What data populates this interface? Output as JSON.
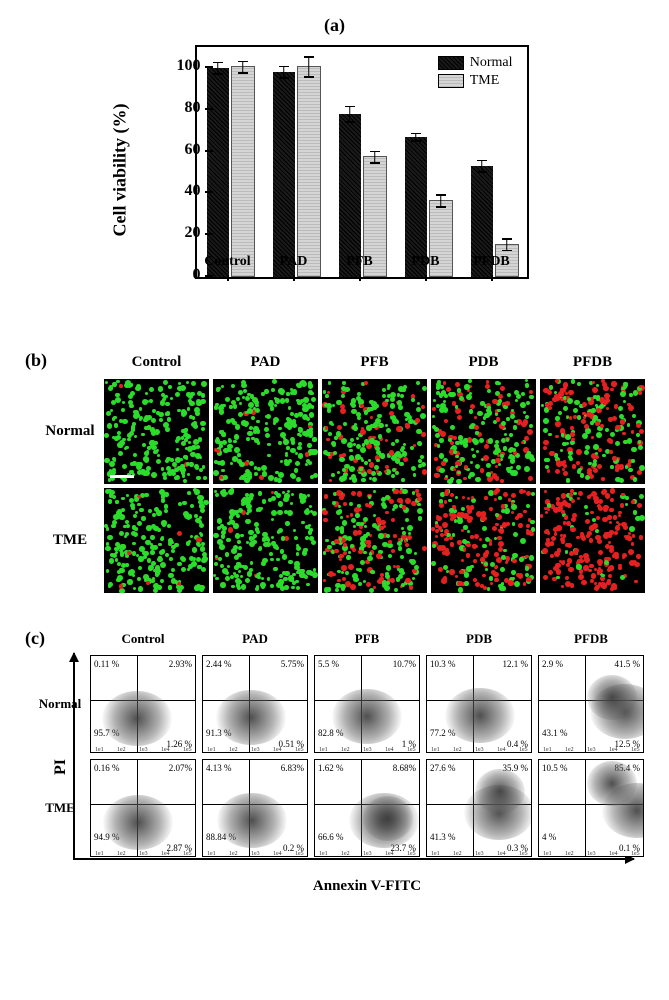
{
  "panel_a": {
    "label": "(a)",
    "type": "bar",
    "ylabel": "Cell viability (%)",
    "ylim": [
      0,
      110
    ],
    "yticks": [
      0,
      20,
      40,
      60,
      80,
      100
    ],
    "categories": [
      "Control",
      "PAD",
      "PFB",
      "PDB",
      "PFDB"
    ],
    "series": [
      {
        "name": "Normal",
        "color": "#1a1a1a",
        "values": [
          100,
          98,
          78,
          67,
          53
        ],
        "errors": [
          3,
          3,
          4,
          2,
          3
        ]
      },
      {
        "name": "TME",
        "color": "#c8c8c8",
        "values": [
          100,
          100,
          57,
          36,
          15
        ],
        "errors": [
          3,
          5,
          3,
          3,
          3
        ]
      }
    ],
    "legend_labels": [
      "Normal",
      "TME"
    ]
  },
  "panel_b": {
    "label": "(b)",
    "columns": [
      "Control",
      "PAD",
      "PFB",
      "PDB",
      "PFDB"
    ],
    "rows": [
      "Normal",
      "TME"
    ],
    "green": "#2bdc2b",
    "red": "#e62020",
    "bg": "#000000",
    "red_fraction": {
      "Normal": {
        "Control": 0.02,
        "PAD": 0.03,
        "PFB": 0.2,
        "PDB": 0.36,
        "PFDB": 0.52
      },
      "TME": {
        "Control": 0.02,
        "PAD": 0.04,
        "PFB": 0.45,
        "PDB": 0.65,
        "PFDB": 0.88
      }
    }
  },
  "panel_c": {
    "label": "(c)",
    "columns": [
      "Control",
      "PAD",
      "PFB",
      "PDB",
      "PFDB"
    ],
    "rows": [
      "Normal",
      "TME"
    ],
    "y_axis": "PI",
    "x_axis": "Annexin V-FITC",
    "quadrants": {
      "Normal": {
        "Control": {
          "q1": "0.11 %",
          "q2": "2.93%",
          "q3": "95.7 %",
          "q4": "1.26 %"
        },
        "PAD": {
          "q1": "2.44 %",
          "q2": "5.75%",
          "q3": "91.3 %",
          "q4": "0.51 %"
        },
        "PFB": {
          "q1": "5.5 %",
          "q2": "10.7%",
          "q3": "82.8 %",
          "q4": "1 %"
        },
        "PDB": {
          "q1": "10.3 %",
          "q2": "12.1 %",
          "q3": "77.2 %",
          "q4": "0.4 %"
        },
        "PFDB": {
          "q1": "2.9 %",
          "q2": "41.5 %",
          "q3": "43.1 %",
          "q4": "12.5 %"
        }
      },
      "TME": {
        "Control": {
          "q1": "0.16 %",
          "q2": "2.07%",
          "q3": "94.9 %",
          "q4": "2.87 %"
        },
        "PAD": {
          "q1": "4.13 %",
          "q2": "6.83%",
          "q3": "88.84 %",
          "q4": "0.2 %"
        },
        "PFB": {
          "q1": "1.62 %",
          "q2": "8.68%",
          "q3": "66.6 %",
          "q4": "23.7 %"
        },
        "PDB": {
          "q1": "27.6 %",
          "q2": "35.9 %",
          "q3": "41.3 %",
          "q4": "0.3 %"
        },
        "PFDB": {
          "q1": "10.5 %",
          "q2": "85.4 %",
          "q3": "4 %",
          "q4": "0.1 %"
        }
      }
    }
  }
}
